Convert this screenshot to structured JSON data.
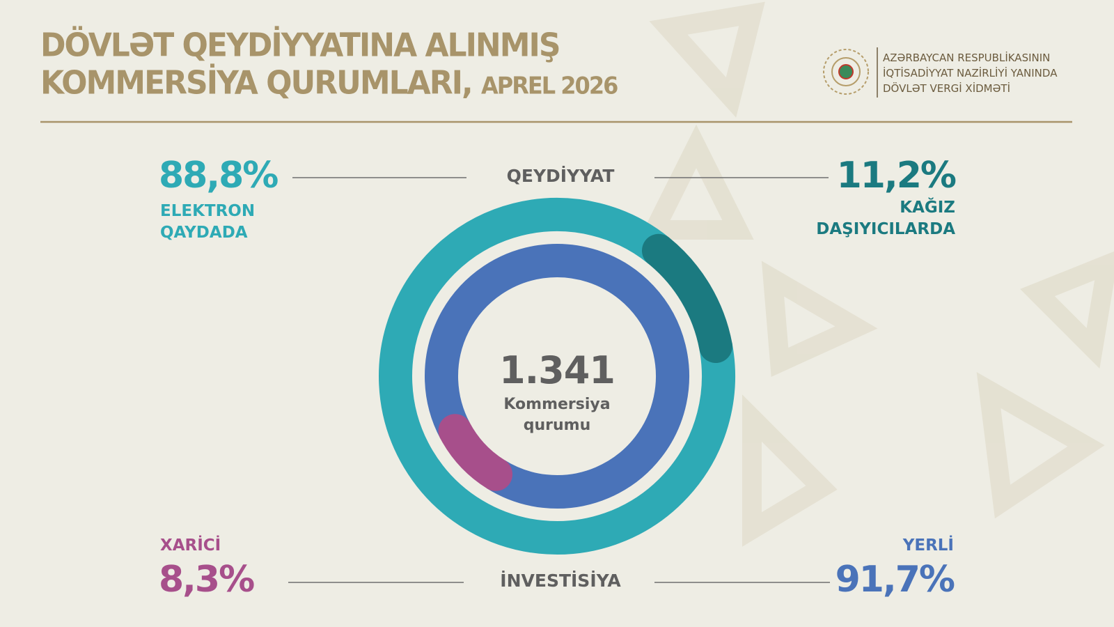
{
  "header": {
    "title_line1": "DÖVLƏT QEYDİYYATINA ALINMIŞ",
    "title_line2": "KOMMERSİYA QURUMLARI,",
    "subtitle": "APREL 2026",
    "logo_lines": [
      "AZƏRBAYCAN RESPUBLİKASININ",
      "İQTİSADİYYAT NAZİRLİYİ YANINDA",
      "DÖVLƏT VERGİ XİDMƏTİ"
    ]
  },
  "center": {
    "total": "1.341",
    "label": "Kommersiya qurumu"
  },
  "chart_data": [
    {
      "type": "donut",
      "title": "QEYDİYYAT",
      "categories": [
        "ELEKTRON QAYDADA",
        "KAĞIZ DAŞIYICILARDA"
      ],
      "values": [
        88.8,
        11.2
      ],
      "value_labels": [
        "88,8%",
        "11,2%"
      ],
      "colors": [
        "#2eaab5",
        "#1b7a80"
      ]
    },
    {
      "type": "donut",
      "title": "İNVESTİSİYA",
      "categories": [
        "XARİCİ",
        "YERLİ"
      ],
      "values": [
        8.3,
        91.7
      ],
      "value_labels": [
        "8,3%",
        "91,7%"
      ],
      "colors": [
        "#a74f8b",
        "#4a73b9"
      ]
    }
  ]
}
